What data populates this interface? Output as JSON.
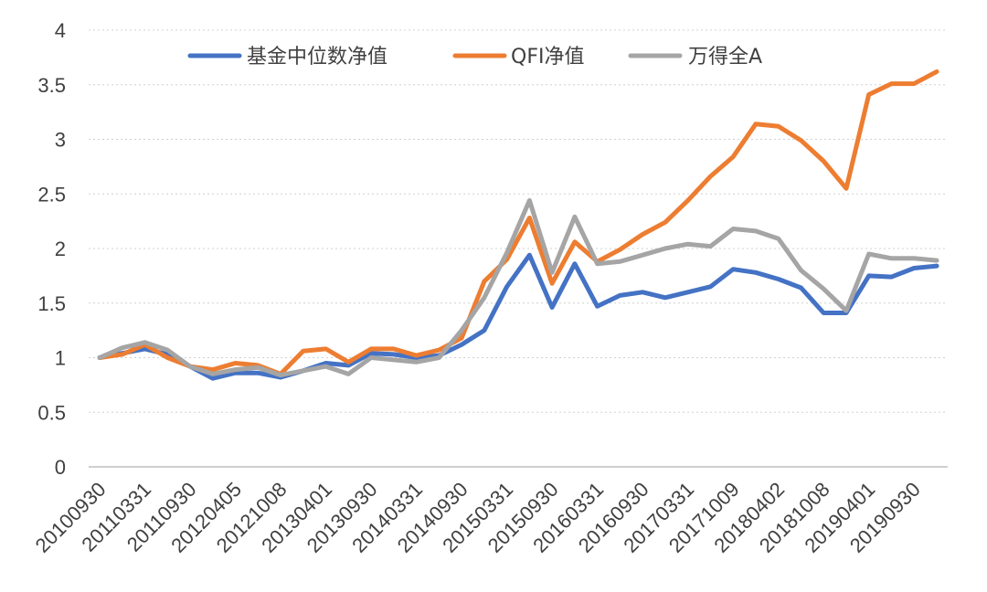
{
  "chart_data": {
    "type": "line",
    "title": "",
    "xlabel": "",
    "ylabel": "",
    "ylim": [
      0,
      4
    ],
    "y_ticks": [
      "0",
      "0.5",
      "1",
      "1.5",
      "2",
      "2.5",
      "3",
      "3.5",
      "4"
    ],
    "grid": "horizontal dotted",
    "legend": "top",
    "x_tick_labels": [
      "20100930",
      "20110331",
      "20110930",
      "20120405",
      "20121008",
      "20130401",
      "20130930",
      "20140331",
      "20140930",
      "20150331",
      "20150930",
      "20160331",
      "20160930",
      "20170331",
      "20171009",
      "20180402",
      "20181008",
      "20190401",
      "20190930"
    ],
    "x_count": 38,
    "series": [
      {
        "name": "基金中位数净值",
        "color": "#4472C4",
        "values": [
          1.0,
          1.04,
          1.08,
          1.03,
          0.92,
          0.81,
          0.86,
          0.86,
          0.82,
          0.88,
          0.95,
          0.93,
          1.04,
          1.03,
          1.0,
          1.02,
          1.12,
          1.25,
          1.65,
          1.94,
          1.46,
          1.86,
          1.47,
          1.57,
          1.6,
          1.55,
          1.6,
          1.65,
          1.81,
          1.78,
          1.72,
          1.64,
          1.41,
          1.41,
          1.75,
          1.74,
          1.82,
          1.84
        ]
      },
      {
        "name": "QFI净值",
        "color": "#ED7D31",
        "values": [
          1.0,
          1.03,
          1.12,
          1.0,
          0.92,
          0.89,
          0.95,
          0.93,
          0.85,
          1.06,
          1.08,
          0.96,
          1.08,
          1.08,
          1.02,
          1.07,
          1.18,
          1.7,
          1.9,
          2.28,
          1.68,
          2.06,
          1.88,
          1.99,
          2.13,
          2.24,
          2.44,
          2.66,
          2.84,
          3.14,
          3.12,
          2.99,
          2.8,
          2.55,
          3.41,
          3.51,
          3.51,
          3.62
        ]
      },
      {
        "name": "万得全A",
        "color": "#A5A5A5",
        "values": [
          1.0,
          1.09,
          1.14,
          1.07,
          0.92,
          0.85,
          0.89,
          0.91,
          0.84,
          0.88,
          0.92,
          0.85,
          1.0,
          0.98,
          0.96,
          1.0,
          1.25,
          1.55,
          1.96,
          2.44,
          1.78,
          2.29,
          1.86,
          1.88,
          1.94,
          2.0,
          2.04,
          2.02,
          2.18,
          2.16,
          2.09,
          1.8,
          1.63,
          1.43,
          1.95,
          1.91,
          1.91,
          1.89
        ]
      }
    ]
  }
}
